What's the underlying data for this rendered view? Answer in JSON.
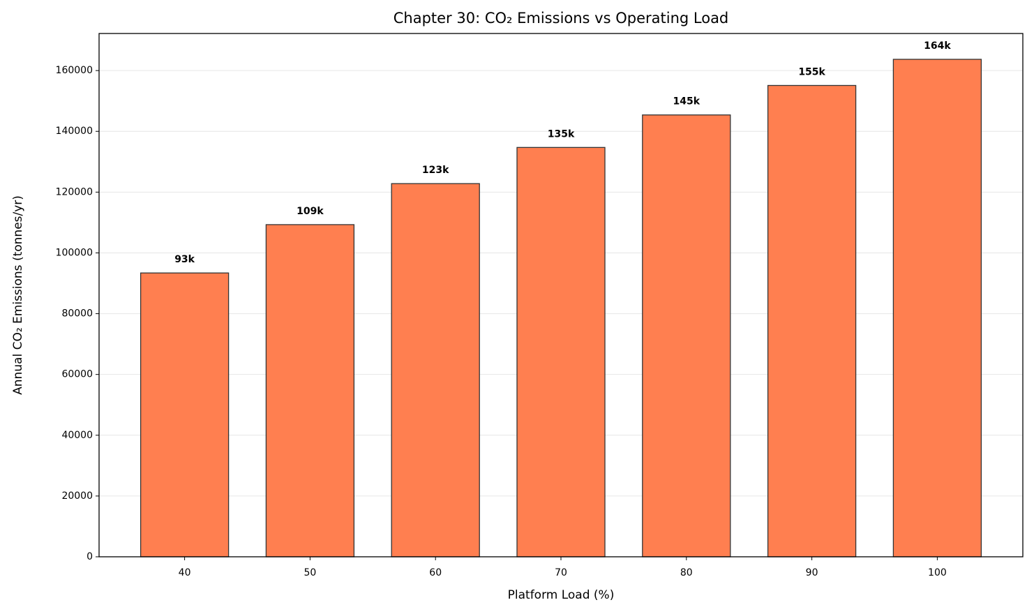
{
  "chart_data": {
    "type": "bar",
    "title": "Chapter 30: CO₂ Emissions vs Operating Load",
    "x_label": "Platform Load (%)",
    "y_label": "Annual CO₂ Emissions (tonnes/yr)",
    "categories": [
      "40",
      "50",
      "60",
      "70",
      "80",
      "90",
      "100"
    ],
    "values": [
      93400,
      109300,
      122800,
      134700,
      145400,
      155100,
      163700
    ],
    "value_labels": [
      "93k",
      "109k",
      "123k",
      "135k",
      "145k",
      "155k",
      "164k"
    ],
    "color": "#ff7f50",
    "edgecolor": "#333333",
    "ylim": [
      0,
      172200
    ],
    "yticks": [
      0,
      20000,
      40000,
      60000,
      80000,
      100000,
      120000,
      140000,
      160000
    ],
    "grid": true
  }
}
